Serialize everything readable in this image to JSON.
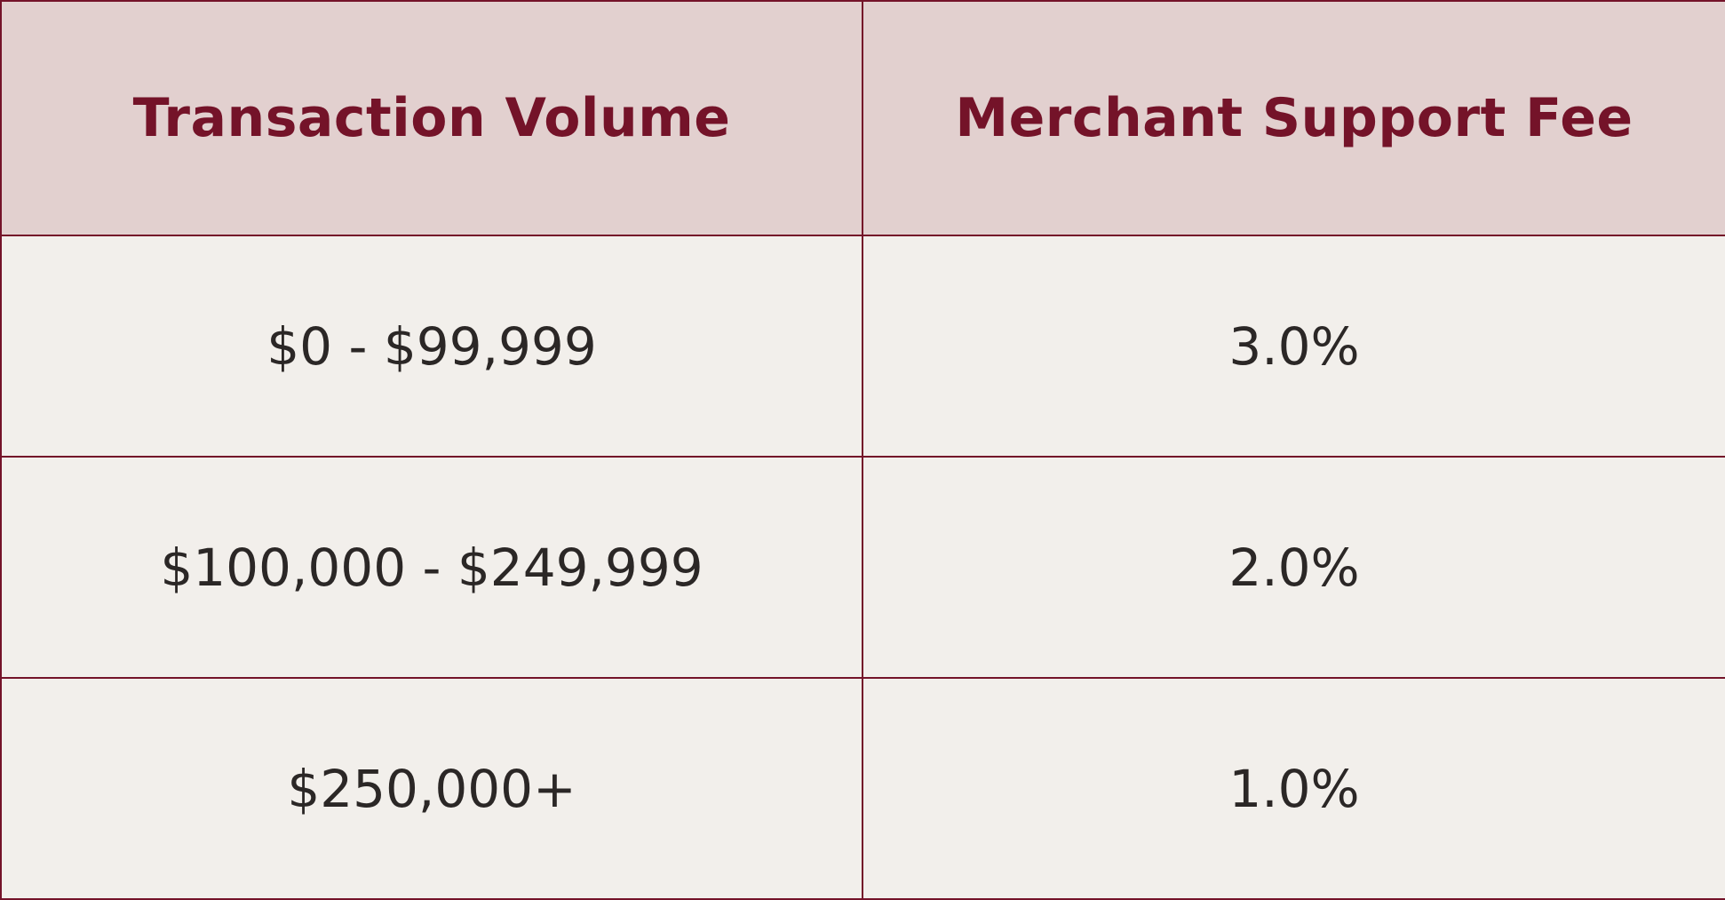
{
  "table": {
    "headers": {
      "volume": "Transaction Volume",
      "fee": "Merchant Support Fee"
    },
    "rows": [
      {
        "volume": "$0 - $99,999",
        "fee": "3.0%"
      },
      {
        "volume": "$100,000 - $249,999",
        "fee": "2.0%"
      },
      {
        "volume": "$250,000+",
        "fee": "1.0%"
      }
    ]
  },
  "colors": {
    "accent": "#741329",
    "header_background": "#e2d0cf",
    "body_background": "#f2efeb",
    "body_text": "#2b2726"
  }
}
